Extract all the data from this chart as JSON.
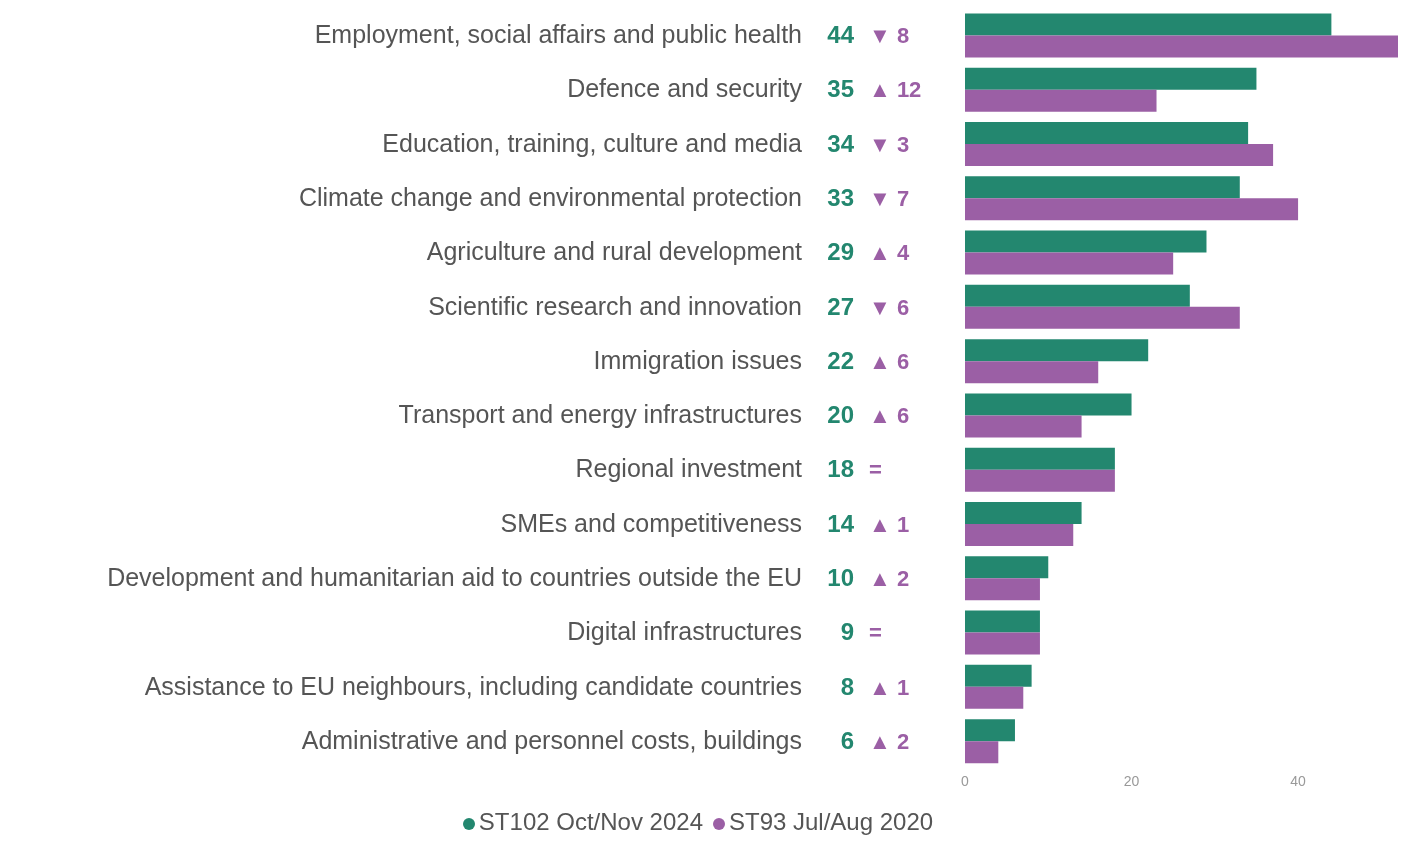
{
  "chart_data": {
    "type": "bar",
    "orientation": "horizontal",
    "categories": [
      "Employment, social affairs and public health",
      "Defence and security",
      "Education, training, culture and media",
      "Climate change and environmental protection",
      "Agriculture and rural development",
      "Scientific research and innovation",
      "Immigration issues",
      "Transport and energy infrastructures",
      "Regional investment",
      "SMEs and competitiveness",
      "Development and humanitarian aid to countries outside the EU",
      "Digital infrastructures",
      "Assistance to EU neighbours, including candidate countries",
      "Administrative and personnel costs, buildings"
    ],
    "series": [
      {
        "name": "ST102 Oct/Nov 2024",
        "color": "#23876f",
        "values": [
          44,
          35,
          34,
          33,
          29,
          27,
          22,
          20,
          18,
          14,
          10,
          9,
          8,
          6
        ],
        "value_labels": [
          "44",
          "35",
          "34",
          "33",
          "29",
          "27",
          "22",
          "20",
          "18",
          "14",
          "10",
          "9",
          "8",
          "6"
        ]
      },
      {
        "name": "ST93 Jul/Aug 2020",
        "color": "#9b5fa5",
        "values": [
          52,
          23,
          37,
          40,
          25,
          33,
          16,
          14,
          18,
          13,
          9,
          9,
          7,
          4
        ]
      }
    ],
    "annotations": [
      "▼ 8",
      "▲ 12",
      "▼ 3",
      "▼ 7",
      "▲ 4",
      "▼ 6",
      "▲ 6",
      "▲ 6",
      "=",
      "▲ 1",
      "▲ 2",
      "=",
      "▲ 1",
      "▲ 2"
    ],
    "xlim": [
      0,
      52
    ],
    "xticks": [
      0,
      20,
      40
    ],
    "legend": "bottom"
  }
}
